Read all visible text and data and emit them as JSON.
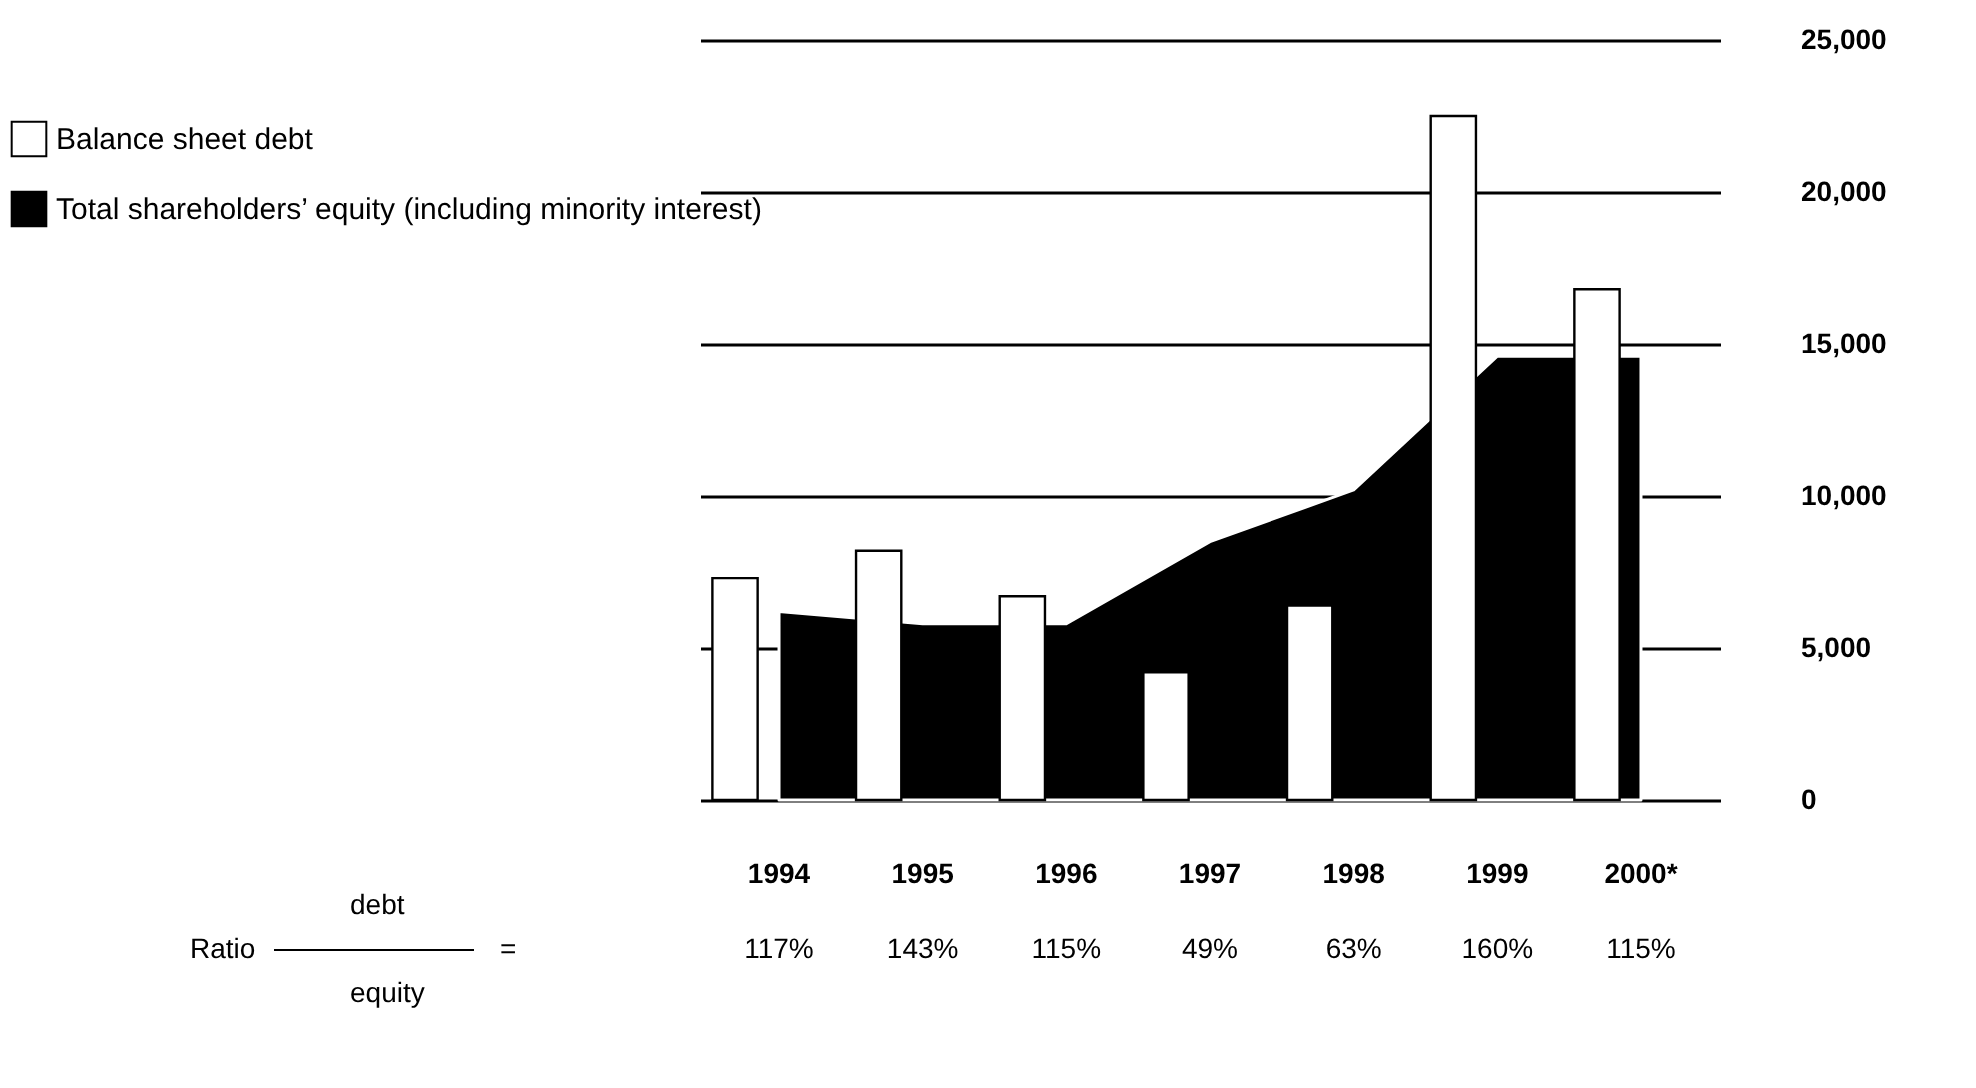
{
  "chart_data": {
    "type": "bar",
    "categories": [
      "1994",
      "1995",
      "1996",
      "1997",
      "1998",
      "1999",
      "2000*"
    ],
    "series": [
      {
        "name": "Balance sheet debt",
        "color": "#ffffff",
        "values": [
          7300,
          8200,
          6700,
          4200,
          6400,
          22500,
          16800
        ]
      },
      {
        "name": "Total shareholders’ equity (including minority interest)",
        "type": "area",
        "color": "#000000",
        "values": [
          6200,
          5800,
          5800,
          8500,
          10200,
          14600,
          14600
        ]
      }
    ],
    "ylim": [
      0,
      25000
    ],
    "yticks": [
      0,
      {
        "value": 5000,
        "label": "5,000"
      },
      {
        "value": 10000,
        "label": "10,000"
      },
      {
        "value": 15000,
        "label": "15,000"
      },
      {
        "value": 20000,
        "label": "20,000"
      },
      {
        "value": 25000,
        "label": "25,000"
      }
    ],
    "grid": "y",
    "legend": "top left",
    "annotations": [
      "Ratio",
      "debt",
      "equity",
      "=",
      "117%",
      "143%",
      "115%",
      "49%",
      "63%",
      "160%",
      "115%"
    ]
  }
}
